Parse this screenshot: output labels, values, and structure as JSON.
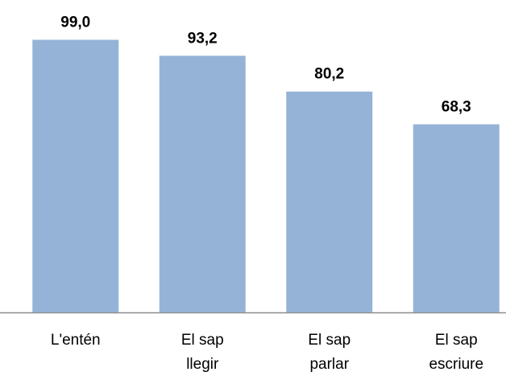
{
  "chart_data": {
    "type": "bar",
    "categories": [
      "L'entén",
      "El sap llegir",
      "El sap parlar",
      "El sap escriure"
    ],
    "values": [
      99.0,
      93.2,
      80.2,
      68.3
    ],
    "value_labels": [
      "99,0",
      "93,2",
      "80,2",
      "68,3"
    ],
    "color": "#95b3d7",
    "ylim": [
      0,
      100
    ]
  }
}
